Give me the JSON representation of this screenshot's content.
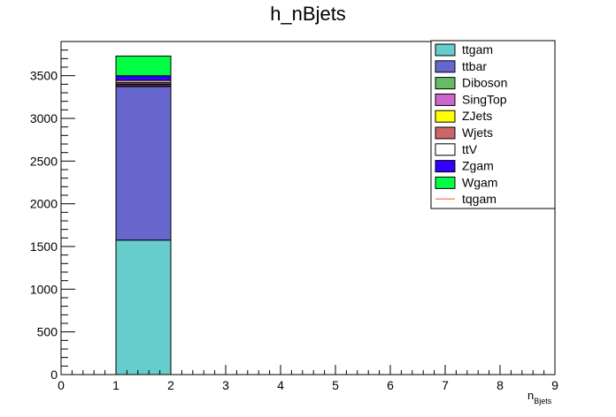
{
  "chart_data": {
    "type": "bar",
    "stacked": true,
    "title": "h_nBjets",
    "xlabel": {
      "main": "n",
      "sub": "Bjets"
    },
    "ylabel": "",
    "xlim": [
      0,
      9
    ],
    "ylim": [
      0,
      3900
    ],
    "x_ticks": [
      "0",
      "1",
      "2",
      "3",
      "4",
      "5",
      "6",
      "7",
      "8",
      "9"
    ],
    "y_ticks": [
      "0",
      "500",
      "1000",
      "1500",
      "2000",
      "2500",
      "3000",
      "3500"
    ],
    "bins": [
      [
        1,
        2
      ]
    ],
    "series": [
      {
        "name": "ttgam",
        "color": "#66cccc",
        "values": [
          1575
        ],
        "style": "fill"
      },
      {
        "name": "ttbar",
        "color": "#6666cc",
        "values": [
          1800
        ],
        "style": "fill"
      },
      {
        "name": "Diboson",
        "color": "#66bb66",
        "values": [
          5
        ],
        "style": "fill"
      },
      {
        "name": "SingTop",
        "color": "#cc66cc",
        "values": [
          18
        ],
        "style": "fill"
      },
      {
        "name": "ZJets",
        "color": "#ffff00",
        "values": [
          4
        ],
        "style": "fill"
      },
      {
        "name": "Wjets",
        "color": "#cc6666",
        "values": [
          20
        ],
        "style": "fill"
      },
      {
        "name": "ttV",
        "color": "#ffffff",
        "values": [
          22
        ],
        "style": "fill"
      },
      {
        "name": "Zgam",
        "color": "#3300ff",
        "values": [
          55
        ],
        "style": "fill"
      },
      {
        "name": "Wgam",
        "color": "#00ff44",
        "values": [
          231
        ],
        "style": "fill"
      },
      {
        "name": "tqgam",
        "color": "#ff6633",
        "values": [
          0
        ],
        "style": "line"
      }
    ],
    "grid": false,
    "legend_position": "top-right"
  }
}
